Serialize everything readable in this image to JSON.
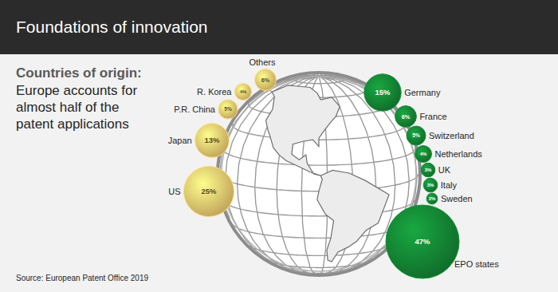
{
  "chart_data": {
    "type": "bubble",
    "title": "Foundations of innovation",
    "subtitle": "Countries of origin:",
    "annotations": [
      "Europe accounts for almost half of the patent applications",
      "Source: European Patent Office 2019"
    ],
    "categories": [
      "Others",
      "R. Korea",
      "P.R. China",
      "Japan",
      "US",
      "Germany",
      "France",
      "Switzerland",
      "Netherlands",
      "UK",
      "Italy",
      "Sweden",
      "EPO states"
    ],
    "values": [
      6,
      4,
      5,
      13,
      25,
      15,
      6,
      5,
      4,
      3,
      3,
      2,
      47
    ],
    "value_labels": [
      "6%",
      "4%",
      "5%",
      "13%",
      "25%",
      "15%",
      "6%",
      "5%",
      "4%",
      "3%",
      "3%",
      "2%",
      "47%"
    ],
    "colors": [
      "#d9b866",
      "#d9b866",
      "#d9b866",
      "#d9b866",
      "#d9b866",
      "#127a30",
      "#127a30",
      "#127a30",
      "#127a30",
      "#127a30",
      "#127a30",
      "#127a30",
      "#127a30"
    ],
    "data_labels": true
  }
}
